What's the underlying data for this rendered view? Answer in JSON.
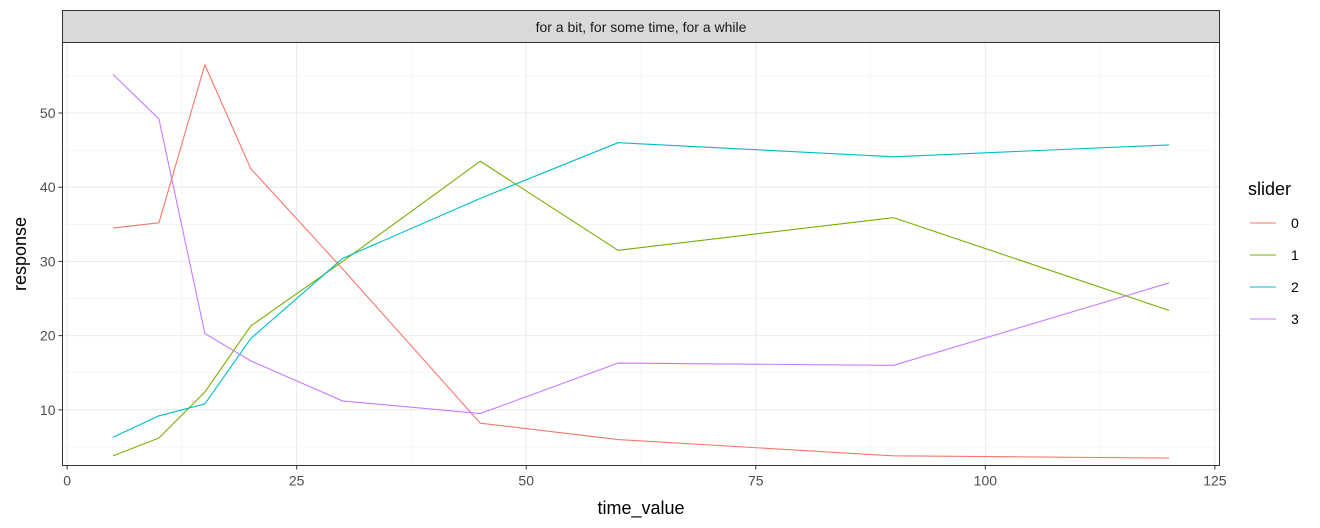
{
  "chart_data": {
    "type": "line",
    "strip_label": "for a bit, for some time, for a while",
    "xlabel": "time_value",
    "ylabel": "response",
    "xlim": [
      -0.5,
      125.5
    ],
    "ylim": [
      2.5,
      59.5
    ],
    "x_ticks": [
      0,
      25,
      50,
      75,
      100,
      125
    ],
    "y_ticks": [
      10,
      20,
      30,
      40,
      50
    ],
    "grid": true,
    "legend": {
      "title": "slider",
      "placement": "right",
      "entries": [
        "0",
        "1",
        "2",
        "3"
      ]
    },
    "series": [
      {
        "name": "0",
        "color": "#F8766D",
        "x": [
          5,
          10,
          15,
          20,
          30,
          45,
          60,
          90,
          120
        ],
        "values": [
          34.5,
          35.2,
          56.5,
          42.5,
          29.0,
          8.2,
          6.0,
          3.8,
          3.5
        ]
      },
      {
        "name": "1",
        "color": "#7CAE00",
        "x": [
          5,
          10,
          15,
          20,
          30,
          45,
          60,
          90,
          120
        ],
        "values": [
          3.8,
          6.2,
          12.4,
          21.3,
          30.0,
          43.5,
          31.5,
          35.9,
          23.4
        ]
      },
      {
        "name": "2",
        "color": "#00BFC4",
        "x": [
          5,
          10,
          15,
          20,
          30,
          45,
          60,
          90,
          120
        ],
        "values": [
          6.3,
          9.2,
          10.8,
          19.6,
          30.4,
          38.5,
          46.0,
          44.1,
          45.7
        ]
      },
      {
        "name": "3",
        "color": "#C77CFF",
        "x": [
          5,
          10,
          15,
          20,
          30,
          45,
          60,
          90,
          120
        ],
        "values": [
          55.2,
          49.2,
          20.3,
          16.6,
          11.2,
          9.5,
          16.3,
          16.0,
          27.1
        ]
      }
    ]
  }
}
